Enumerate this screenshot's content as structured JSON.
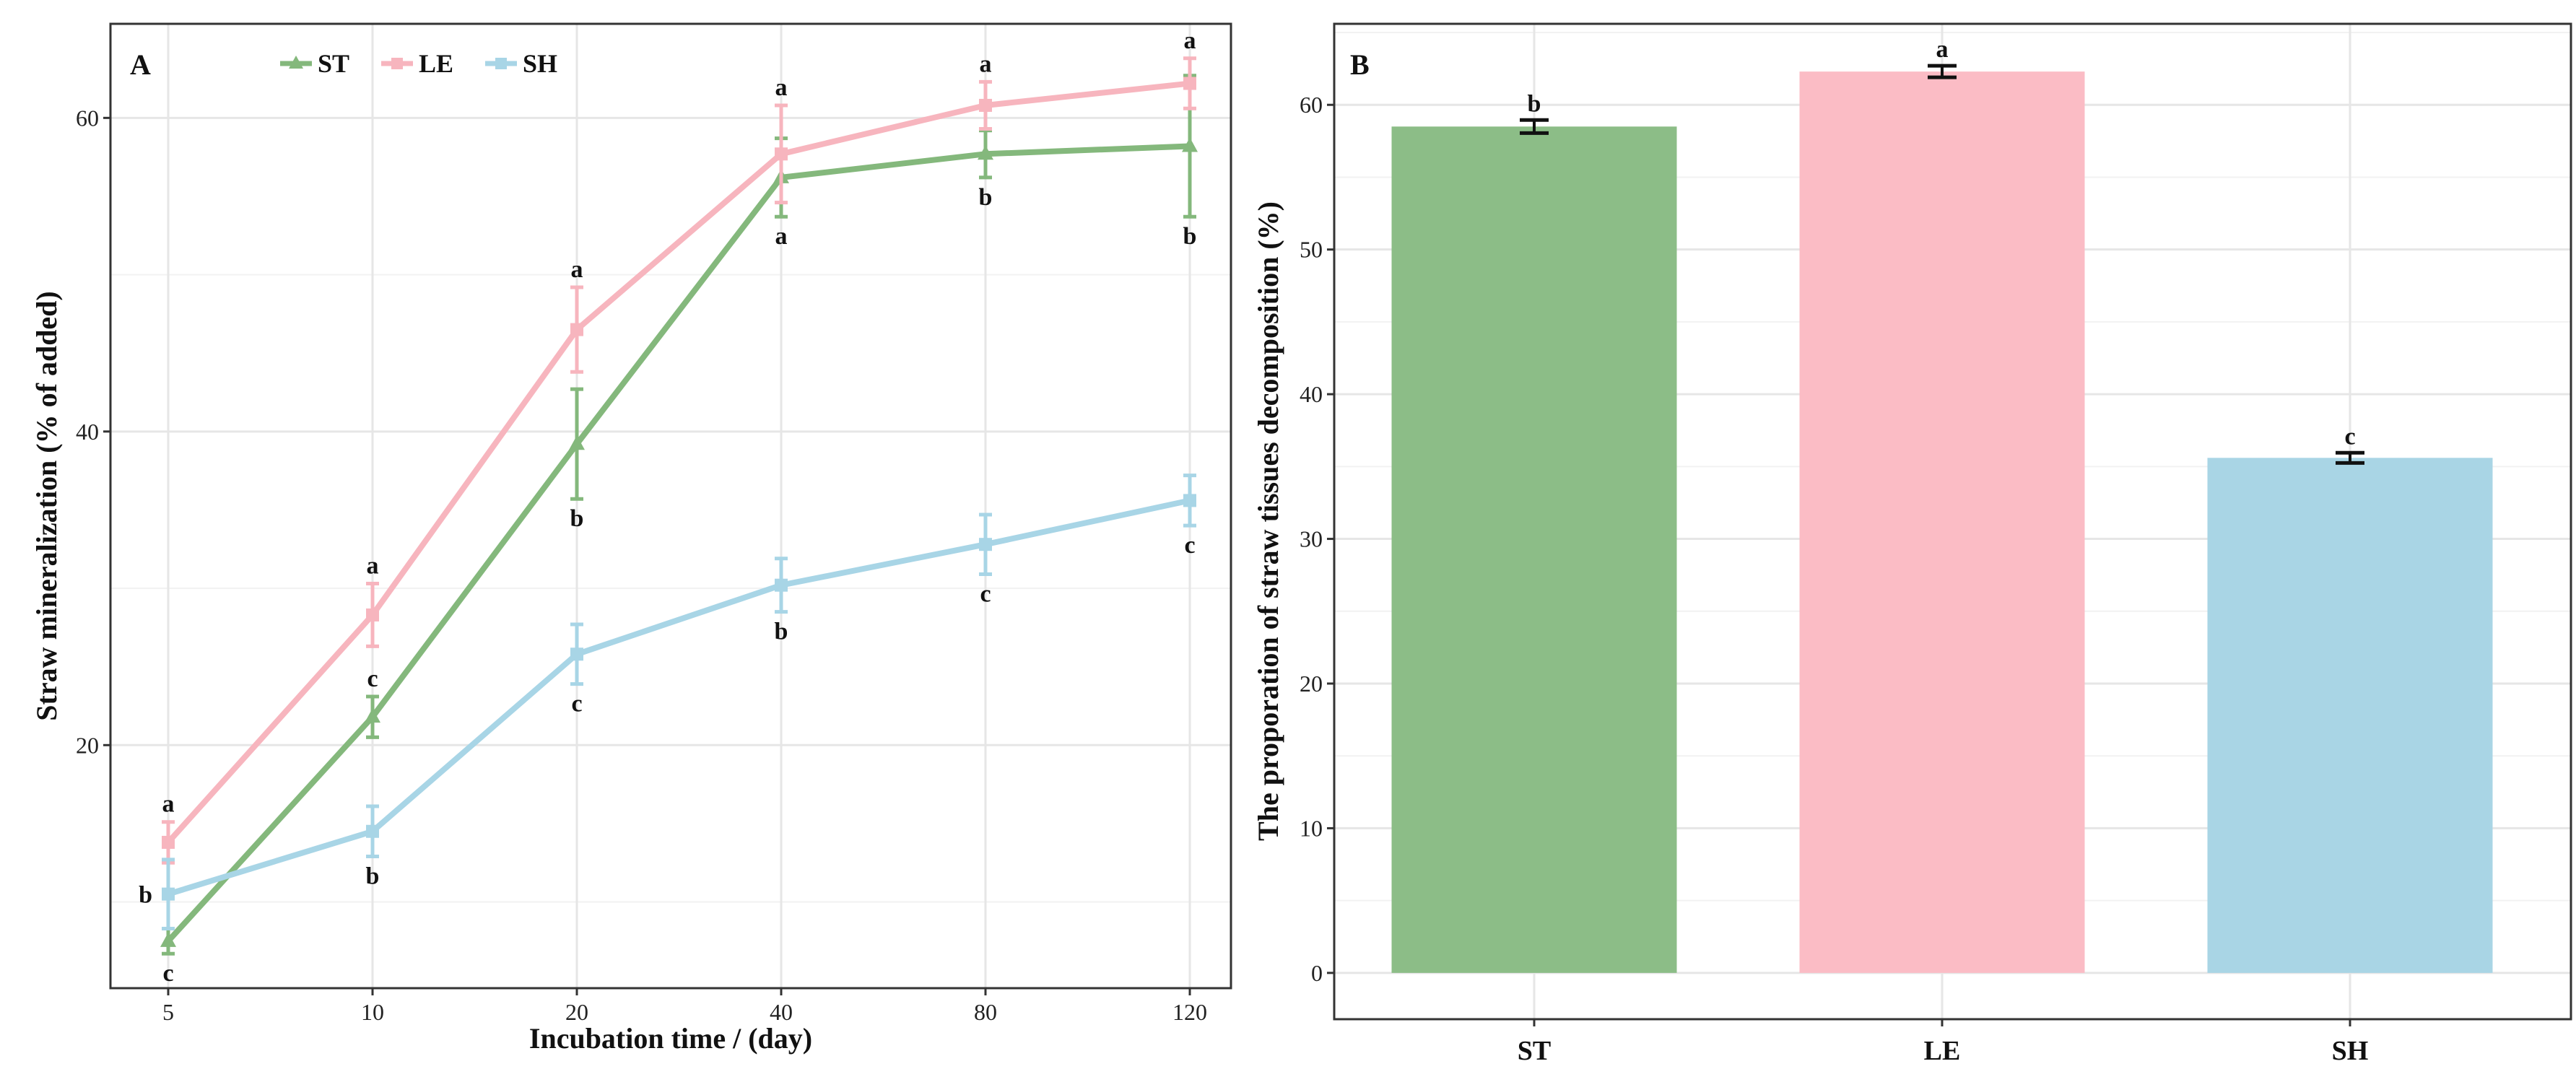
{
  "chart_data": [
    {
      "panel": "A",
      "type": "line",
      "title": "",
      "xlabel": "Incubation time / (day)",
      "ylabel": "Straw mineralization (% of added)",
      "categories": [
        "5",
        "10",
        "20",
        "40",
        "80",
        "120"
      ],
      "y_ticks": [
        20,
        40,
        60
      ],
      "ylim": [
        4.5,
        66
      ],
      "grid": true,
      "legend": "top",
      "series": [
        {
          "name": "ST",
          "color": "#84b87c",
          "marker": "triangle",
          "values": [
            7.5,
            21.8,
            39.2,
            56.2,
            57.7,
            58.2
          ],
          "errors": [
            0.8,
            1.3,
            3.5,
            2.5,
            1.5,
            4.5
          ],
          "letters": [
            "c",
            "c",
            "b",
            "a",
            "b",
            "b"
          ],
          "letter_pos": [
            "below",
            "above",
            "below",
            "below",
            "below",
            "below"
          ]
        },
        {
          "name": "LE",
          "color": "#f7b5be",
          "marker": "square",
          "values": [
            13.8,
            28.3,
            46.5,
            57.7,
            60.8,
            62.2
          ],
          "errors": [
            1.3,
            2.0,
            2.7,
            3.1,
            1.5,
            1.6
          ],
          "letters": [
            "a",
            "a",
            "a",
            "a",
            "a",
            "a"
          ],
          "letter_pos": [
            "above",
            "above",
            "above",
            "above",
            "above",
            "above"
          ]
        },
        {
          "name": "SH",
          "color": "#a8d5e6",
          "marker": "square",
          "values": [
            10.5,
            14.5,
            25.8,
            30.2,
            32.8,
            35.6
          ],
          "errors": [
            2.2,
            1.6,
            1.9,
            1.7,
            1.9,
            1.6
          ],
          "letters": [
            "b",
            "b",
            "c",
            "b",
            "c",
            "c"
          ],
          "letter_pos": [
            "left",
            "below",
            "below",
            "below",
            "below",
            "below"
          ]
        }
      ]
    },
    {
      "panel": "B",
      "type": "bar",
      "title": "",
      "xlabel": "",
      "ylabel": "The proporation of straw tissues decomposition (%)",
      "categories": [
        "ST",
        "LE",
        "SH"
      ],
      "values": [
        58.5,
        62.3,
        35.6
      ],
      "errors": [
        0.45,
        0.4,
        0.35
      ],
      "letters": [
        "b",
        "a",
        "c"
      ],
      "colors": [
        "#8cbd87",
        "#fbbcc5",
        "#a9d5e5"
      ],
      "y_ticks": [
        0,
        10,
        20,
        30,
        40,
        50,
        60
      ],
      "ylim": [
        -3.2,
        65.6
      ],
      "grid": true
    }
  ]
}
